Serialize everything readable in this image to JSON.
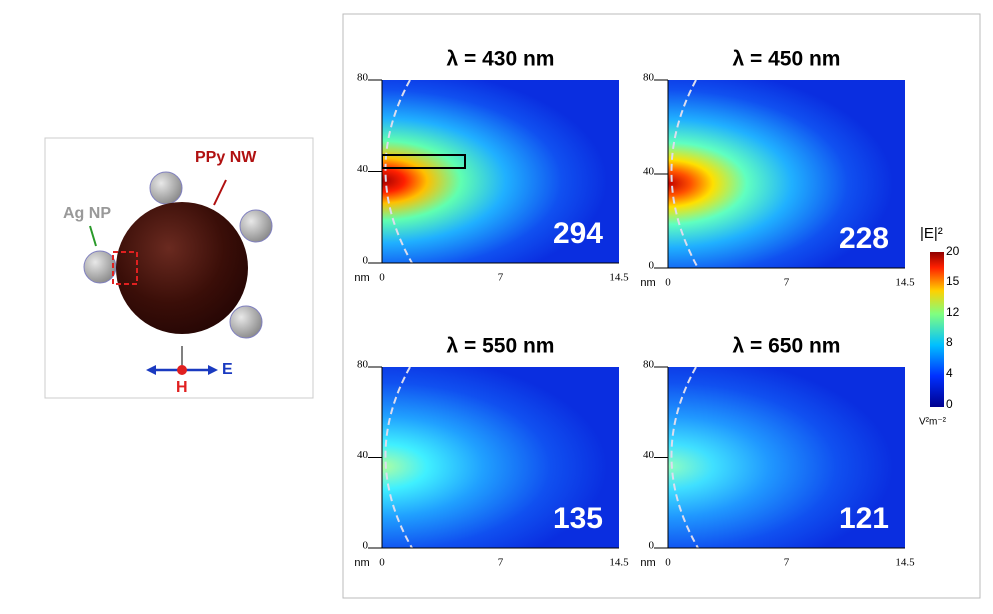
{
  "schematic": {
    "ppy_label": "PPy NW",
    "ag_label": "Ag NP",
    "e_label": "E",
    "h_label": "H"
  },
  "panels": [
    {
      "title": "λ = 430 nm",
      "enhancement": 294,
      "y_ticks": [
        80,
        40,
        0
      ],
      "x_unit": "nm",
      "x_ticks": [
        0,
        7,
        14.5
      ]
    },
    {
      "title": "λ = 450 nm",
      "enhancement": 228,
      "y_ticks": [
        80,
        40,
        0
      ],
      "x_unit": "nm",
      "x_ticks": [
        0,
        7,
        14.5
      ]
    },
    {
      "title": "λ = 550 nm",
      "enhancement": 135,
      "y_ticks": [
        80,
        40,
        0
      ],
      "x_unit": "nm",
      "x_ticks": [
        0,
        7,
        14.5
      ]
    },
    {
      "title": "λ = 650 nm",
      "enhancement": 121,
      "y_ticks": [
        80,
        40,
        0
      ],
      "x_unit": "nm",
      "x_ticks": [
        0,
        7,
        14.5
      ]
    }
  ],
  "colorbar": {
    "label": "|E|²",
    "ticks": [
      20,
      15,
      12,
      8,
      4,
      0
    ],
    "unit": "V²m⁻²"
  }
}
